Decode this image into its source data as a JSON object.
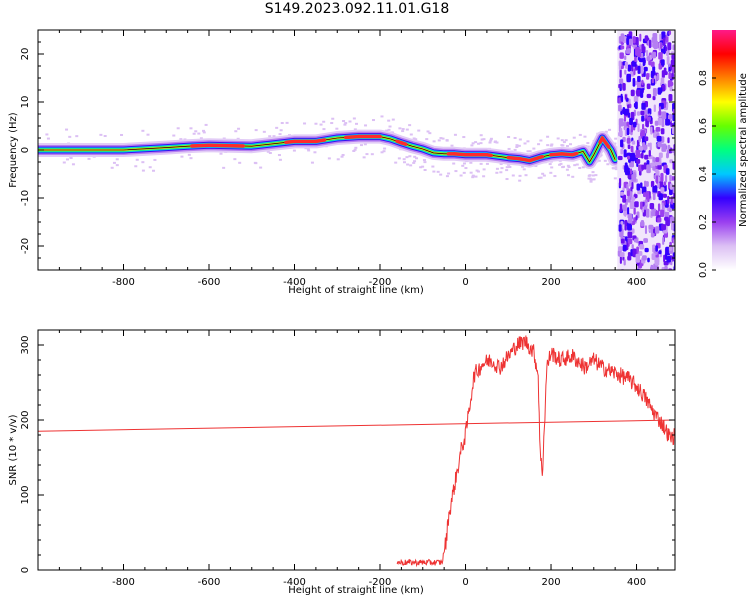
{
  "title": "S149.2023.092.11.01.G18",
  "chart_data": [
    {
      "type": "heatmap",
      "xlabel": "Height of straight line (km)",
      "ylabel": "Frequency (Hz)",
      "xlim": [
        -1000,
        490
      ],
      "ylim": [
        -25,
        25
      ],
      "x_ticks": [
        -800,
        -600,
        -400,
        -200,
        0,
        200,
        400
      ],
      "y_ticks": [
        -20,
        -10,
        0,
        10,
        20
      ],
      "ridge": {
        "x": [
          -1000,
          -900,
          -800,
          -700,
          -650,
          -600,
          -500,
          -450,
          -400,
          -350,
          -300,
          -250,
          -200,
          -175,
          -150,
          -125,
          -100,
          -75,
          -50,
          -25,
          0,
          25,
          50,
          75,
          100,
          125,
          150,
          175,
          200,
          225,
          250,
          275,
          290,
          300,
          320,
          340,
          350
        ],
        "y": [
          0,
          0,
          0,
          0.5,
          0.8,
          1,
          0.8,
          1.3,
          1.8,
          1.8,
          2.5,
          2.8,
          2.8,
          2.3,
          1.5,
          0.8,
          0.2,
          -0.6,
          -0.8,
          -0.8,
          -1,
          -1,
          -1,
          -1.3,
          -1.6,
          -1.8,
          -2.2,
          -1.5,
          -1,
          -0.8,
          -1,
          -0.3,
          -2.5,
          -1,
          2.5,
          0,
          -2
        ]
      },
      "noise_region_x": [
        355,
        490
      ],
      "colorbar": {
        "label": "Normalized spectral amplitude",
        "ticks": [
          0.0,
          0.2,
          0.4,
          0.6,
          0.8
        ],
        "range": [
          0,
          1
        ],
        "colors": [
          "#ffffff",
          "#dcc0f4",
          "#9a3ff0",
          "#3300ff",
          "#00c8ff",
          "#00ff80",
          "#66ff00",
          "#ffff00",
          "#ff8000",
          "#ff0000",
          "#ff1a88"
        ]
      }
    },
    {
      "type": "line",
      "xlabel": "Height of straight line (km)",
      "ylabel": "SNR (10 * v/v)",
      "xlim": [
        -1000,
        490
      ],
      "ylim": [
        0,
        320
      ],
      "x_ticks": [
        -800,
        -600,
        -400,
        -200,
        0,
        200,
        400
      ],
      "y_ticks": [
        0,
        100,
        200,
        300
      ],
      "series": [
        {
          "color": "#ee3333",
          "x": [
            -1000,
            490
          ],
          "y": [
            185,
            200
          ]
        },
        {
          "color": "#ee3333",
          "x": [
            -160,
            -100,
            -55,
            -45,
            -40,
            -30,
            -20,
            -10,
            0,
            10,
            20,
            40,
            60,
            80,
            100,
            120,
            140,
            160,
            170,
            175,
            180,
            185,
            190,
            200,
            220,
            250,
            280,
            300,
            320,
            340,
            360,
            380,
            400,
            420,
            440,
            460,
            480,
            490
          ],
          "y": [
            10,
            10,
            10,
            40,
            70,
            100,
            130,
            160,
            180,
            220,
            260,
            275,
            280,
            270,
            285,
            300,
            305,
            290,
            260,
            150,
            130,
            200,
            270,
            290,
            280,
            285,
            270,
            280,
            270,
            265,
            260,
            255,
            245,
            230,
            210,
            195,
            175,
            180
          ]
        }
      ]
    }
  ]
}
